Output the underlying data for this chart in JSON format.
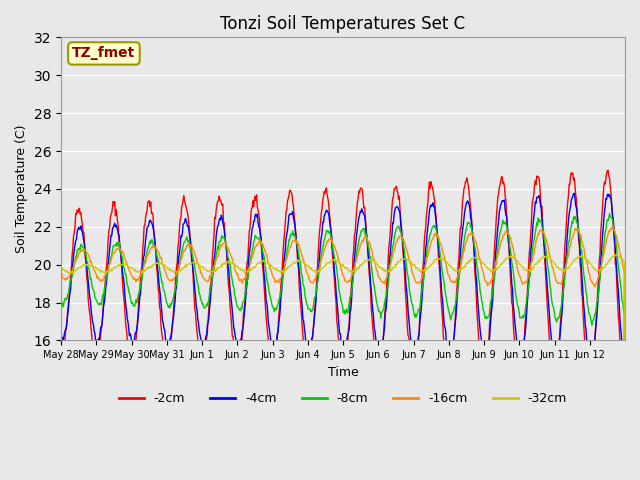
{
  "title": "Tonzi Soil Temperatures Set C",
  "xlabel": "Time",
  "ylabel": "Soil Temperature (C)",
  "annotation_text": "TZ_fmet",
  "annotation_color": "#8B0000",
  "annotation_bg": "#FFFFCC",
  "annotation_edge": "#999900",
  "ylim": [
    16,
    32
  ],
  "yticks": [
    16,
    18,
    20,
    22,
    24,
    26,
    28,
    30,
    32
  ],
  "background_color": "#E8E8E8",
  "plot_bg": "#E8E8E8",
  "series_colors": [
    "#FF0000",
    "#0000FF",
    "#00CC00",
    "#FF8C00",
    "#CCCC00"
  ],
  "series_labels": [
    "-2cm",
    "-4cm",
    "-8cm",
    "-16cm",
    "-32cm"
  ],
  "n_days": 16,
  "x_tick_labels": [
    "May 28",
    "May 29",
    "May 30",
    "May 31",
    "Jun 1",
    "Jun 2",
    "Jun 3",
    "Jun 4",
    "Jun 5",
    "Jun 6",
    "Jun 7",
    "Jun 8",
    "Jun 9",
    "Jun 10",
    "Jun 11",
    "Jun 12"
  ],
  "grid_color": "#FFFFFF",
  "title_fontsize": 12,
  "axis_label_fontsize": 9,
  "tick_fontsize": 7
}
